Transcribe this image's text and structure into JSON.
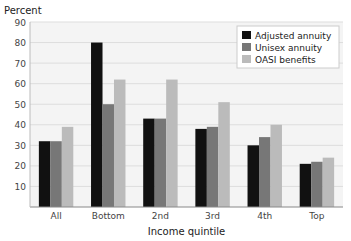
{
  "chart_data": {
    "type": "bar",
    "categories": [
      "All",
      "Bottom",
      "2nd",
      "3rd",
      "4th",
      "Top"
    ],
    "series": [
      {
        "name": "Adjusted annuity",
        "color": "#111111",
        "values": [
          32,
          80,
          43,
          38,
          30,
          21
        ]
      },
      {
        "name": "Unisex annuity",
        "color": "#777777",
        "values": [
          32,
          50,
          43,
          39,
          34,
          22
        ]
      },
      {
        "name": "OASI benefits",
        "color": "#bbbbbb",
        "values": [
          39,
          62,
          62,
          51,
          40,
          24
        ]
      }
    ],
    "ylabel": "Percent",
    "xlabel": "Income quintile",
    "ylim": [
      0,
      90
    ],
    "yticks": [
      10,
      20,
      30,
      40,
      50,
      60,
      70,
      80,
      90
    ],
    "grid": true,
    "legend": "upper right"
  }
}
